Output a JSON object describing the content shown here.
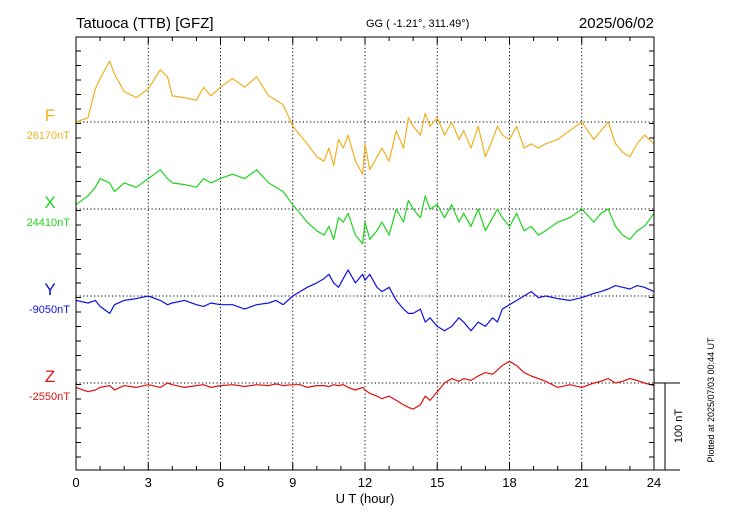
{
  "header": {
    "station": "Tatuoca (TTB)  [GFZ]",
    "coords": "GG ( -1.21°, 311.49°)",
    "date": "2025/06/02"
  },
  "footer": {
    "plotted": "Plotted at 2025/07/03 00:44 UT"
  },
  "chart_data": {
    "type": "line",
    "xlabel": "U T (hour)",
    "xlim": [
      0,
      24
    ],
    "xticks": [
      "0",
      "3",
      "6",
      "9",
      "12",
      "15",
      "18",
      "21",
      "24"
    ],
    "scale_bar": {
      "label": "100 nT",
      "nT": 100
    },
    "series": [
      {
        "name": "F",
        "baseline_label": "26170nT",
        "color": "#f0b020",
        "x": [
          0.0,
          0.5,
          0.8,
          1.0,
          1.4,
          1.6,
          2.0,
          2.5,
          3.0,
          3.5,
          3.8,
          4.0,
          4.5,
          5.0,
          5.3,
          5.6,
          6.0,
          6.5,
          7.0,
          7.5,
          8.0,
          8.3,
          8.6,
          9.0,
          9.3,
          9.6,
          10.0,
          10.3,
          10.5,
          10.7,
          10.9,
          11.1,
          11.3,
          11.6,
          11.9,
          12.0,
          12.2,
          12.5,
          12.7,
          13.0,
          13.3,
          13.6,
          13.8,
          14.0,
          14.3,
          14.5,
          14.7,
          15.0,
          15.3,
          15.6,
          15.9,
          16.1,
          16.4,
          16.7,
          17.0,
          17.3,
          17.5,
          17.7,
          18.0,
          18.3,
          18.6,
          18.9,
          19.2,
          19.5,
          20.0,
          20.5,
          21.0,
          21.5,
          21.8,
          22.1,
          22.4,
          22.7,
          23.0,
          23.3,
          23.6,
          24.0
        ],
        "y": [
          0,
          5,
          38,
          50,
          70,
          55,
          35,
          28,
          38,
          60,
          52,
          30,
          28,
          25,
          40,
          30,
          40,
          50,
          40,
          52,
          30,
          25,
          20,
          -5,
          -15,
          -25,
          -40,
          -45,
          -30,
          -50,
          -20,
          -30,
          -15,
          -45,
          -60,
          -25,
          -55,
          -40,
          -30,
          -45,
          -10,
          -30,
          5,
          -5,
          -15,
          10,
          -5,
          5,
          -15,
          0,
          -20,
          -10,
          -30,
          -5,
          -40,
          -20,
          -5,
          -15,
          -20,
          -5,
          -30,
          -25,
          -30,
          -25,
          -20,
          -10,
          0,
          -20,
          -10,
          0,
          -25,
          -35,
          -40,
          -25,
          -15,
          -25
        ]
      },
      {
        "name": "X",
        "baseline_label": "24410nT",
        "color": "#1fd31f",
        "x": [
          0.0,
          0.5,
          0.8,
          1.0,
          1.4,
          1.6,
          2.0,
          2.5,
          3.0,
          3.5,
          3.8,
          4.0,
          4.5,
          5.0,
          5.3,
          5.6,
          6.0,
          6.5,
          7.0,
          7.5,
          8.0,
          8.3,
          8.6,
          9.0,
          9.3,
          9.6,
          10.0,
          10.3,
          10.5,
          10.7,
          10.9,
          11.1,
          11.3,
          11.6,
          11.9,
          12.0,
          12.2,
          12.5,
          12.7,
          13.0,
          13.3,
          13.6,
          13.8,
          14.0,
          14.3,
          14.5,
          14.7,
          15.0,
          15.3,
          15.6,
          15.9,
          16.1,
          16.4,
          16.7,
          17.0,
          17.3,
          17.5,
          17.7,
          18.0,
          18.3,
          18.6,
          18.9,
          19.2,
          19.5,
          20.0,
          20.5,
          21.0,
          21.5,
          21.8,
          22.1,
          22.4,
          22.7,
          23.0,
          23.3,
          23.6,
          24.0
        ],
        "y": [
          5,
          15,
          25,
          35,
          30,
          20,
          30,
          25,
          35,
          45,
          35,
          30,
          28,
          25,
          35,
          30,
          35,
          40,
          35,
          45,
          30,
          25,
          20,
          5,
          -5,
          -15,
          -25,
          -30,
          -20,
          -35,
          -10,
          -15,
          -5,
          -30,
          -40,
          -15,
          -35,
          -25,
          -15,
          -30,
          0,
          -15,
          10,
          0,
          -10,
          15,
          0,
          5,
          -10,
          5,
          -15,
          -5,
          -20,
          0,
          -25,
          -10,
          0,
          -10,
          -20,
          -5,
          -25,
          -20,
          -30,
          -25,
          -15,
          -10,
          0,
          -15,
          -5,
          0,
          -20,
          -30,
          -35,
          -25,
          -20,
          -5
        ]
      },
      {
        "name": "Y",
        "baseline_label": "-9050nT",
        "color": "#1010e0",
        "x": [
          0.0,
          0.5,
          0.8,
          1.0,
          1.4,
          1.6,
          2.0,
          2.5,
          3.0,
          3.5,
          3.8,
          4.0,
          4.5,
          5.0,
          5.3,
          5.6,
          6.0,
          6.5,
          7.0,
          7.5,
          8.0,
          8.3,
          8.6,
          9.0,
          9.3,
          9.6,
          10.0,
          10.3,
          10.5,
          10.7,
          10.9,
          11.1,
          11.3,
          11.6,
          11.9,
          12.0,
          12.2,
          12.5,
          12.7,
          13.0,
          13.3,
          13.6,
          13.8,
          14.0,
          14.3,
          14.5,
          14.7,
          15.0,
          15.3,
          15.6,
          15.9,
          16.1,
          16.4,
          16.7,
          17.0,
          17.3,
          17.5,
          17.7,
          18.0,
          18.3,
          18.6,
          18.9,
          19.2,
          19.5,
          20.0,
          20.5,
          21.0,
          21.5,
          21.8,
          22.1,
          22.4,
          22.7,
          23.0,
          23.3,
          23.6,
          24.0
        ],
        "y": [
          -5,
          -8,
          -5,
          -12,
          -20,
          -10,
          -5,
          -3,
          0,
          -5,
          -10,
          -8,
          -5,
          -10,
          -12,
          -8,
          -10,
          -10,
          -15,
          -10,
          -8,
          -5,
          -10,
          0,
          5,
          10,
          15,
          20,
          25,
          15,
          10,
          20,
          30,
          15,
          25,
          18,
          25,
          10,
          5,
          10,
          -5,
          -15,
          -20,
          -20,
          -15,
          -30,
          -25,
          -35,
          -40,
          -35,
          -25,
          -30,
          -40,
          -30,
          -35,
          -25,
          -30,
          -15,
          -10,
          -5,
          0,
          5,
          -2,
          0,
          -3,
          -5,
          -2,
          3,
          5,
          8,
          12,
          10,
          8,
          12,
          10,
          5
        ]
      },
      {
        "name": "Z",
        "baseline_label": "-2550nT",
        "color": "#e01010",
        "x": [
          0.0,
          0.5,
          0.8,
          1.0,
          1.4,
          1.6,
          2.0,
          2.5,
          3.0,
          3.5,
          3.8,
          4.0,
          4.5,
          5.0,
          5.3,
          5.6,
          6.0,
          6.5,
          7.0,
          7.5,
          8.0,
          8.3,
          8.6,
          9.0,
          9.3,
          9.6,
          10.0,
          10.3,
          10.5,
          10.7,
          10.9,
          11.1,
          11.3,
          11.6,
          11.9,
          12.0,
          12.2,
          12.5,
          12.7,
          13.0,
          13.3,
          13.6,
          13.8,
          14.0,
          14.3,
          14.5,
          14.7,
          15.0,
          15.3,
          15.6,
          15.9,
          16.1,
          16.4,
          16.7,
          17.0,
          17.3,
          17.5,
          17.7,
          18.0,
          18.3,
          18.6,
          18.9,
          19.2,
          19.5,
          20.0,
          20.5,
          21.0,
          21.5,
          21.8,
          22.1,
          22.4,
          22.7,
          23.0,
          23.3,
          23.6,
          24.0
        ],
        "y": [
          -5,
          -10,
          -8,
          -5,
          -3,
          -8,
          -3,
          -5,
          -2,
          -5,
          0,
          -2,
          -5,
          -3,
          -2,
          -5,
          -3,
          -2,
          -4,
          -2,
          -3,
          -1,
          -3,
          -2,
          -2,
          -5,
          -3,
          -3,
          -4,
          -2,
          -3,
          -2,
          -5,
          -8,
          -5,
          -8,
          -12,
          -15,
          -18,
          -15,
          -20,
          -25,
          -28,
          -30,
          -25,
          -15,
          -20,
          -10,
          0,
          5,
          2,
          5,
          3,
          8,
          12,
          10,
          15,
          20,
          25,
          20,
          12,
          8,
          5,
          2,
          -5,
          -2,
          -5,
          0,
          2,
          5,
          0,
          2,
          5,
          3,
          0,
          -3
        ]
      }
    ]
  }
}
